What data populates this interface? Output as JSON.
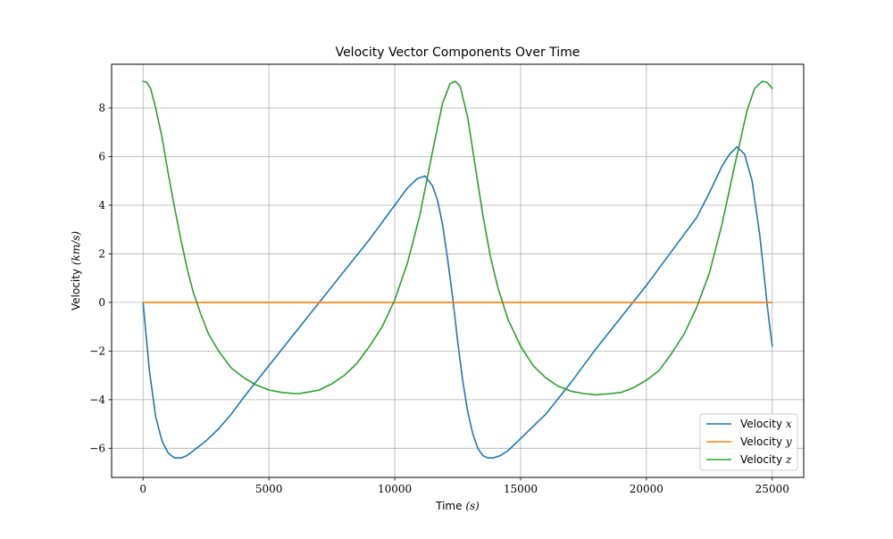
{
  "chart_data": {
    "type": "line",
    "title": "Velocity Vector Components Over Time",
    "xlabel": "Time (s)",
    "xlabel_parts": {
      "text": "Time ",
      "math": "(s)"
    },
    "ylabel": "Velocity (km/s)",
    "ylabel_parts": {
      "text": "Velocity ",
      "math": "(km/s)"
    },
    "xlim": [
      -1250,
      26250
    ],
    "ylim": [
      -7.2,
      9.8
    ],
    "xticks": [
      0,
      5000,
      10000,
      15000,
      20000,
      25000
    ],
    "xtick_labels": [
      "0",
      "5000",
      "10000",
      "15000",
      "20000",
      "25000"
    ],
    "yticks": [
      -6,
      -4,
      -2,
      0,
      2,
      4,
      6,
      8
    ],
    "ytick_labels": [
      "−6",
      "−4",
      "−2",
      "0",
      "2",
      "4",
      "6",
      "8"
    ],
    "grid": true,
    "legend_position": "lower-right",
    "series": [
      {
        "name": "Velocity x",
        "legend_text": "Velocity ",
        "legend_math": "x",
        "color": "#1f77b4",
        "x": [
          0,
          250,
          500,
          750,
          1000,
          1250,
          1500,
          1750,
          2000,
          2500,
          3000,
          3500,
          4000,
          5000,
          6000,
          7000,
          8000,
          9000,
          9500,
          10000,
          10500,
          10900,
          11200,
          11500,
          11700,
          11900,
          12100,
          12300,
          12500,
          12700,
          12900,
          13100,
          13300,
          13500,
          13700,
          13900,
          14200,
          14500,
          15000,
          16000,
          17000,
          18000,
          19000,
          20000,
          21000,
          22000,
          22500,
          23000,
          23300,
          23600,
          23900,
          24200,
          24500,
          24700,
          24800,
          24900,
          25000
        ],
        "y": [
          0.0,
          -2.8,
          -4.7,
          -5.7,
          -6.2,
          -6.4,
          -6.4,
          -6.3,
          -6.1,
          -5.7,
          -5.2,
          -4.6,
          -3.9,
          -2.6,
          -1.3,
          0.0,
          1.3,
          2.6,
          3.3,
          4.0,
          4.7,
          5.1,
          5.2,
          4.8,
          4.2,
          3.2,
          1.8,
          0.2,
          -1.6,
          -3.2,
          -4.5,
          -5.4,
          -6.0,
          -6.3,
          -6.4,
          -6.4,
          -6.3,
          -6.1,
          -5.6,
          -4.6,
          -3.3,
          -1.9,
          -0.6,
          0.7,
          2.1,
          3.5,
          4.5,
          5.6,
          6.1,
          6.4,
          6.1,
          5.0,
          2.8,
          0.9,
          -0.1,
          -1.0,
          -1.8
        ]
      },
      {
        "name": "Velocity y",
        "legend_text": "Velocity ",
        "legend_math": "y",
        "color": "#ff7f0e",
        "x": [
          0,
          25000
        ],
        "y": [
          0.0,
          0.0
        ]
      },
      {
        "name": "Velocity z",
        "legend_text": "Velocity ",
        "legend_math": "z",
        "color": "#2ca02c",
        "x": [
          0,
          150,
          300,
          500,
          750,
          1000,
          1250,
          1500,
          1750,
          2000,
          2300,
          2600,
          3000,
          3500,
          4000,
          4500,
          5000,
          5500,
          6000,
          6200,
          6500,
          7000,
          7500,
          8000,
          8500,
          9000,
          9500,
          10000,
          10500,
          11000,
          11500,
          11900,
          12200,
          12400,
          12600,
          12900,
          13200,
          13500,
          13800,
          14100,
          14500,
          15000,
          15500,
          16000,
          16500,
          17000,
          17500,
          18000,
          18600,
          19000,
          19500,
          20000,
          20500,
          21000,
          21500,
          22000,
          22500,
          23000,
          23500,
          24000,
          24300,
          24600,
          24800,
          25000
        ],
        "y": [
          9.1,
          9.05,
          8.8,
          8.0,
          6.8,
          5.3,
          3.9,
          2.6,
          1.4,
          0.4,
          -0.5,
          -1.3,
          -2.0,
          -2.7,
          -3.1,
          -3.4,
          -3.6,
          -3.7,
          -3.75,
          -3.75,
          -3.7,
          -3.6,
          -3.35,
          -3.0,
          -2.5,
          -1.8,
          -1.0,
          0.1,
          1.6,
          3.6,
          6.2,
          8.2,
          9.0,
          9.1,
          8.9,
          7.6,
          5.6,
          3.6,
          1.9,
          0.6,
          -0.7,
          -1.8,
          -2.6,
          -3.1,
          -3.45,
          -3.65,
          -3.75,
          -3.8,
          -3.75,
          -3.7,
          -3.5,
          -3.2,
          -2.8,
          -2.1,
          -1.3,
          -0.2,
          1.2,
          3.2,
          5.6,
          7.9,
          8.8,
          9.1,
          9.05,
          8.8
        ]
      }
    ]
  }
}
